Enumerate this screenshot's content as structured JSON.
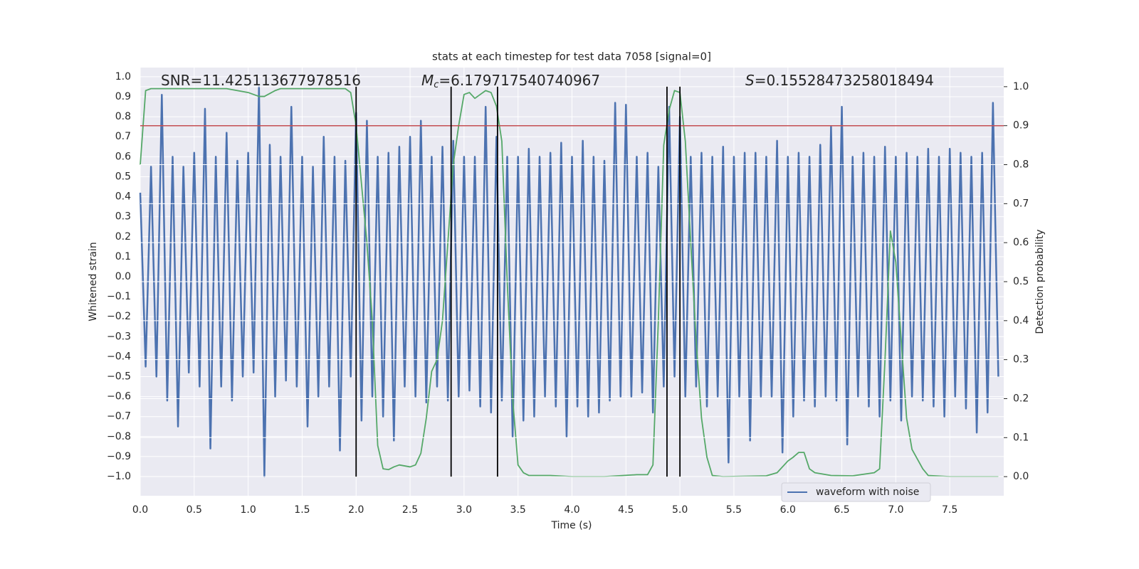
{
  "chart_data": {
    "type": "line",
    "title": "stats at each timestep for test data 7058 [signal=0]",
    "xlabel": "Time (s)",
    "ylabel": "Whitened strain",
    "y2label": "Detection probability",
    "annotations": [
      {
        "text": "SNR=11.425113677978516"
      },
      {
        "italic": "M",
        "sub": "c",
        "text": "=6.179717540740967"
      },
      {
        "italic": "S",
        "text": "=0.15528473258018494"
      }
    ],
    "grid": true,
    "legend": "lower right",
    "xlim": [
      0,
      8.0
    ],
    "ylim": [
      -1.096,
      1.046
    ],
    "y2lim": [
      -0.049,
      1.049
    ],
    "xticks": [
      {
        "value": 0,
        "label": "0.0"
      },
      {
        "value": 0.5,
        "label": "0.5"
      },
      {
        "value": 1,
        "label": "1.0"
      },
      {
        "value": 1.5,
        "label": "1.5"
      },
      {
        "value": 2,
        "label": "2.0"
      },
      {
        "value": 2.5,
        "label": "2.5"
      },
      {
        "value": 3,
        "label": "3.0"
      },
      {
        "value": 3.5,
        "label": "3.5"
      },
      {
        "value": 4,
        "label": "4.0"
      },
      {
        "value": 4.5,
        "label": "4.5"
      },
      {
        "value": 5,
        "label": "5.0"
      },
      {
        "value": 5.5,
        "label": "5.5"
      },
      {
        "value": 6,
        "label": "6.0"
      },
      {
        "value": 6.5,
        "label": "6.5"
      },
      {
        "value": 7,
        "label": "7.0"
      },
      {
        "value": 7.5,
        "label": "7.5"
      }
    ],
    "yticks": [
      {
        "value": -1,
        "label": "−1.0"
      },
      {
        "value": -0.9,
        "label": "−0.9"
      },
      {
        "value": -0.8,
        "label": "−0.8"
      },
      {
        "value": -0.7,
        "label": "−0.7"
      },
      {
        "value": -0.6,
        "label": "−0.6"
      },
      {
        "value": -0.5,
        "label": "−0.5"
      },
      {
        "value": -0.4,
        "label": "−0.4"
      },
      {
        "value": -0.3,
        "label": "−0.3"
      },
      {
        "value": -0.2,
        "label": "−0.2"
      },
      {
        "value": -0.1,
        "label": "−0.1"
      },
      {
        "value": 0,
        "label": "0.0"
      },
      0.1,
      0.2,
      0.3,
      0.4,
      0.5,
      0.6,
      0.7,
      0.8,
      0.9,
      {
        "value": 1,
        "label": "1.0"
      }
    ],
    "y2ticks": [
      {
        "value": 0,
        "label": "0.0"
      },
      0.1,
      0.2,
      0.3,
      0.4,
      0.5,
      0.6,
      0.7,
      0.8,
      0.9,
      {
        "value": 1,
        "label": "1.0"
      }
    ],
    "threshold": {
      "value": 0.9,
      "axis": "y2",
      "color": "#c44e52"
    },
    "vlines": {
      "x": [
        2.0,
        2.88,
        3.31,
        4.88,
        5.0
      ],
      "color": "#000000",
      "axis": "y2",
      "range": [
        0,
        1
      ]
    },
    "series": [
      {
        "name": "waveform with noise",
        "color": "#4c72b0",
        "x": [
          0,
          0.05,
          0.1,
          0.15,
          0.2,
          0.25,
          0.3,
          0.35,
          0.4,
          0.45,
          0.5,
          0.55,
          0.6,
          0.65,
          0.7,
          0.75,
          0.8,
          0.85,
          0.9,
          0.95,
          1,
          1.05,
          1.1,
          1.15,
          1.2,
          1.25,
          1.3,
          1.35,
          1.4,
          1.45,
          1.5,
          1.55,
          1.6,
          1.65,
          1.7,
          1.75,
          1.8,
          1.85,
          1.9,
          1.95,
          2,
          2.05,
          2.1,
          2.15,
          2.2,
          2.25,
          2.3,
          2.35,
          2.4,
          2.45,
          2.5,
          2.55,
          2.6,
          2.65,
          2.7,
          2.75,
          2.8,
          2.85,
          2.9,
          2.95,
          3,
          3.05,
          3.1,
          3.15,
          3.2,
          3.25,
          3.3,
          3.35,
          3.4,
          3.45,
          3.5,
          3.55,
          3.6,
          3.65,
          3.7,
          3.75,
          3.8,
          3.85,
          3.9,
          3.95,
          4,
          4.05,
          4.1,
          4.15,
          4.2,
          4.25,
          4.3,
          4.35,
          4.4,
          4.45,
          4.5,
          4.55,
          4.6,
          4.65,
          4.7,
          4.75,
          4.8,
          4.85,
          4.9,
          4.95,
          5,
          5.05,
          5.1,
          5.15,
          5.2,
          5.25,
          5.3,
          5.35,
          5.4,
          5.45,
          5.5,
          5.55,
          5.6,
          5.65,
          5.7,
          5.75,
          5.8,
          5.85,
          5.9,
          5.95,
          6,
          6.05,
          6.1,
          6.15,
          6.2,
          6.25,
          6.3,
          6.35,
          6.4,
          6.45,
          6.5,
          6.55,
          6.6,
          6.65,
          6.7,
          6.75,
          6.8,
          6.85,
          6.9,
          6.95,
          7,
          7.05,
          7.1,
          7.15,
          7.2,
          7.25,
          7.3,
          7.35,
          7.4,
          7.45,
          7.5,
          7.55,
          7.6,
          7.65,
          7.7,
          7.75,
          7.8,
          7.85,
          7.9,
          7.95
        ],
        "values": [
          0.42,
          -0.45,
          0.55,
          -0.5,
          0.91,
          -0.62,
          0.6,
          -0.75,
          0.55,
          -0.48,
          0.62,
          -0.55,
          0.84,
          -0.86,
          0.6,
          -0.55,
          0.72,
          -0.62,
          0.58,
          -0.5,
          0.62,
          -0.48,
          0.95,
          -1.0,
          0.66,
          -0.6,
          0.6,
          -0.52,
          0.85,
          -0.55,
          0.6,
          -0.75,
          0.55,
          -0.6,
          0.7,
          -0.55,
          0.6,
          -0.87,
          0.58,
          -0.5,
          0.82,
          -0.72,
          0.78,
          -0.6,
          0.6,
          -0.7,
          0.62,
          -0.82,
          0.65,
          -0.55,
          0.7,
          -0.6,
          0.78,
          -0.63,
          0.6,
          -0.55,
          0.65,
          -0.62,
          0.68,
          -0.6,
          0.6,
          -0.57,
          0.6,
          -0.65,
          0.85,
          -0.68,
          0.7,
          -0.62,
          0.6,
          -0.8,
          0.6,
          -0.72,
          0.64,
          -0.7,
          0.6,
          -0.6,
          0.62,
          -0.65,
          0.67,
          -0.8,
          0.6,
          -0.65,
          0.68,
          -0.7,
          0.6,
          -0.68,
          0.58,
          -0.62,
          0.87,
          -0.6,
          0.86,
          -0.6,
          0.6,
          -0.58,
          0.62,
          -0.68,
          0.55,
          -0.55,
          0.85,
          -0.5,
          0.8,
          -0.6,
          0.6,
          -0.55,
          0.62,
          -0.65,
          0.6,
          -0.6,
          0.65,
          -0.93,
          0.6,
          -0.6,
          0.62,
          -0.82,
          0.62,
          -0.6,
          0.6,
          -0.6,
          0.68,
          -0.88,
          0.6,
          -0.7,
          0.62,
          -0.62,
          0.6,
          -0.65,
          0.66,
          -0.6,
          0.75,
          -0.62,
          0.85,
          -0.84,
          0.6,
          -0.6,
          0.62,
          -0.65,
          0.6,
          -0.7,
          0.65,
          -0.62,
          0.6,
          -0.72,
          0.62,
          -0.6,
          0.6,
          -0.62,
          0.64,
          -0.65,
          0.6,
          -0.7,
          0.64,
          -0.6,
          0.62,
          -0.66,
          0.6,
          -0.78,
          0.62,
          -0.68,
          0.87,
          -0.5
        ]
      },
      {
        "color": "#55a868",
        "axis": "y2",
        "x": [
          0,
          0.05,
          0.1,
          0.5,
          0.8,
          1.0,
          1.1,
          1.15,
          1.25,
          1.3,
          1.9,
          1.95,
          2.0,
          2.05,
          2.1,
          2.15,
          2.2,
          2.25,
          2.3,
          2.35,
          2.4,
          2.5,
          2.55,
          2.6,
          2.65,
          2.7,
          2.75,
          2.8,
          2.85,
          2.9,
          2.95,
          3.0,
          3.05,
          3.1,
          3.15,
          3.2,
          3.25,
          3.3,
          3.35,
          3.4,
          3.45,
          3.5,
          3.55,
          3.6,
          3.8,
          4.0,
          4.3,
          4.6,
          4.7,
          4.75,
          4.8,
          4.85,
          4.9,
          4.95,
          5.0,
          5.05,
          5.1,
          5.15,
          5.2,
          5.25,
          5.3,
          5.4,
          5.8,
          5.9,
          6.0,
          6.05,
          6.1,
          6.15,
          6.2,
          6.25,
          6.4,
          6.6,
          6.8,
          6.85,
          6.9,
          6.95,
          7.0,
          7.05,
          7.1,
          7.15,
          7.25,
          7.3,
          7.5,
          7.95
        ],
        "values": [
          0.8,
          0.99,
          0.995,
          0.995,
          0.995,
          0.985,
          0.975,
          0.975,
          0.99,
          0.995,
          0.995,
          0.985,
          0.9,
          0.75,
          0.6,
          0.4,
          0.08,
          0.02,
          0.018,
          0.025,
          0.03,
          0.025,
          0.03,
          0.06,
          0.15,
          0.27,
          0.3,
          0.4,
          0.6,
          0.8,
          0.9,
          0.98,
          0.985,
          0.97,
          0.98,
          0.99,
          0.985,
          0.95,
          0.86,
          0.5,
          0.2,
          0.03,
          0.01,
          0.003,
          0.003,
          0.0,
          0.0,
          0.005,
          0.005,
          0.03,
          0.4,
          0.85,
          0.94,
          0.99,
          0.985,
          0.86,
          0.6,
          0.35,
          0.15,
          0.05,
          0.003,
          0.0,
          0.002,
          0.01,
          0.04,
          0.05,
          0.062,
          0.062,
          0.02,
          0.01,
          0.003,
          0.002,
          0.01,
          0.02,
          0.3,
          0.63,
          0.55,
          0.35,
          0.15,
          0.07,
          0.02,
          0.003,
          0.0,
          0.0
        ]
      }
    ]
  }
}
